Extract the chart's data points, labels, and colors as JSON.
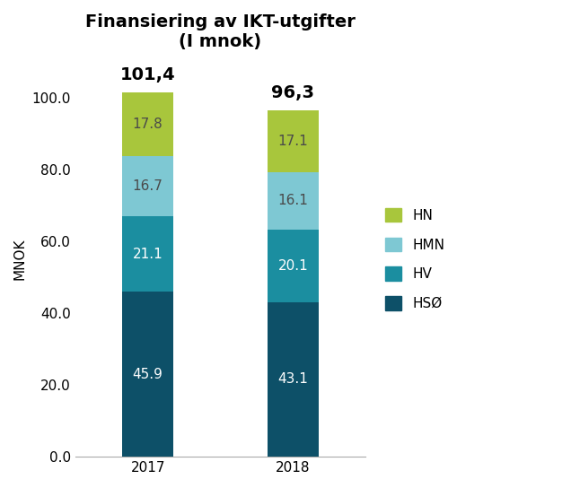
{
  "title": "Finansiering av IKT-utgifter\n(I mnok)",
  "ylabel": "MNOK",
  "years": [
    "2017",
    "2018"
  ],
  "categories": [
    "HSØ",
    "HV",
    "HMN",
    "HN"
  ],
  "values": {
    "2017": [
      45.9,
      21.1,
      16.7,
      17.8
    ],
    "2018": [
      43.1,
      20.1,
      16.1,
      17.1
    ]
  },
  "totals": {
    "2017": "101,4",
    "2018": "96,3"
  },
  "colors": [
    "#0d5068",
    "#1b8ea0",
    "#7ec8d3",
    "#a8c63c"
  ],
  "bar_width": 0.35,
  "ylim": [
    0,
    110
  ],
  "yticks": [
    0.0,
    20.0,
    40.0,
    60.0,
    80.0,
    100.0
  ],
  "legend_labels": [
    "HN",
    "HMN",
    "HV",
    "HSØ"
  ],
  "legend_colors": [
    "#a8c63c",
    "#7ec8d3",
    "#1b8ea0",
    "#0d5068"
  ],
  "title_fontsize": 14,
  "label_fontsize": 11,
  "tick_fontsize": 11,
  "total_fontsize": 14,
  "value_fontsize": 11,
  "value_color_dark": "#ffffff",
  "value_color_light": "#4a4a4a",
  "background_color": "#ffffff"
}
